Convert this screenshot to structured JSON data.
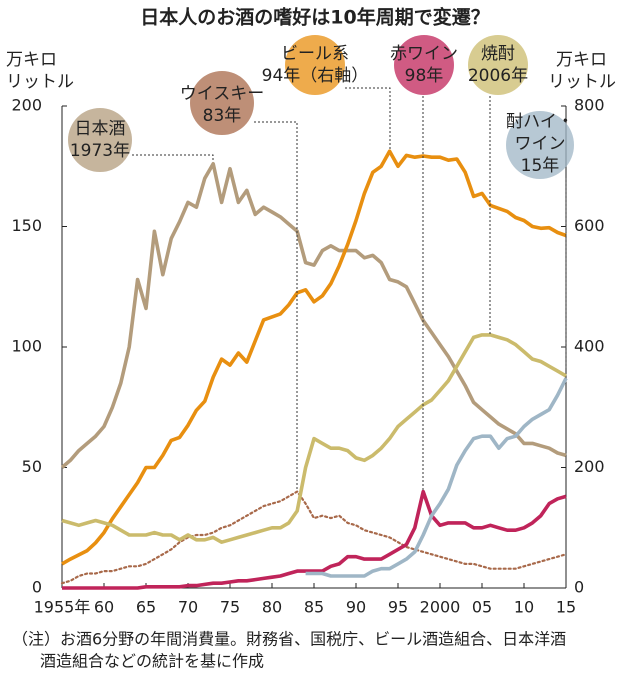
{
  "chart_data": {
    "type": "line",
    "title": "日本人のお酒の嗜好は10年周期で変遷？",
    "y_label": [
      "万キロ",
      "リットル"
    ],
    "y2_label": [
      "万キロ",
      "リットル"
    ],
    "x": [
      1955,
      1956,
      1957,
      1958,
      1959,
      1960,
      1961,
      1962,
      1963,
      1964,
      1965,
      1966,
      1967,
      1968,
      1969,
      1970,
      1971,
      1972,
      1973,
      1974,
      1975,
      1976,
      1977,
      1978,
      1979,
      1980,
      1981,
      1982,
      1983,
      1984,
      1985,
      1986,
      1987,
      1988,
      1989,
      1990,
      1991,
      1992,
      1993,
      1994,
      1995,
      1996,
      1997,
      1998,
      1999,
      2000,
      2001,
      2002,
      2003,
      2004,
      2005,
      2006,
      2007,
      2008,
      2009,
      2010,
      2011,
      2012,
      2013,
      2014,
      2015
    ],
    "xlim": [
      1955,
      2015
    ],
    "xticks": [
      {
        "value": 1955,
        "label": "1955年"
      },
      {
        "value": 1960,
        "label": "60"
      },
      {
        "value": 1965,
        "label": "65"
      },
      {
        "value": 1970,
        "label": "70"
      },
      {
        "value": 1975,
        "label": "75"
      },
      {
        "value": 1980,
        "label": "80"
      },
      {
        "value": 1985,
        "label": "85"
      },
      {
        "value": 1990,
        "label": "90"
      },
      {
        "value": 1995,
        "label": "95"
      },
      {
        "value": 2000,
        "label": "2000"
      },
      {
        "value": 2005,
        "label": "05"
      },
      {
        "value": 2010,
        "label": "10"
      },
      {
        "value": 2015,
        "label": "15"
      }
    ],
    "ylim": [
      0,
      200
    ],
    "yticks": [
      0,
      50,
      100,
      150,
      200
    ],
    "y2lim": [
      0,
      800
    ],
    "y2ticks": [
      0,
      200,
      400,
      600,
      800
    ],
    "series": [
      {
        "label": [
          "日本酒",
          "1973年"
        ],
        "color": "#b39c7c",
        "values": [
          50,
          53,
          57,
          60,
          63,
          67,
          75,
          85,
          100,
          128,
          116,
          148,
          130,
          145,
          152,
          160,
          158,
          170,
          176,
          160,
          174,
          160,
          165,
          155,
          158,
          156,
          154,
          151,
          148,
          135,
          134,
          140,
          142,
          140,
          140,
          140,
          137,
          138,
          135,
          128,
          127,
          125,
          118,
          111,
          106,
          101,
          96,
          90,
          84,
          77,
          74,
          71,
          68,
          66,
          64,
          60,
          60,
          59,
          58,
          56,
          55
        ]
      },
      {
        "label": [
          "ウイスキー",
          "83年"
        ],
        "color": "#a8694a",
        "style": "dotted",
        "values": [
          2,
          3,
          5,
          6,
          6,
          7,
          7,
          8,
          9,
          9,
          10,
          12,
          14,
          16,
          19,
          21,
          22,
          22,
          23,
          25,
          26,
          28,
          30,
          32,
          34,
          35,
          36,
          38,
          40,
          35,
          29,
          30,
          29,
          30,
          27,
          26,
          24,
          23,
          22,
          21,
          19,
          17,
          16,
          15,
          14,
          13,
          12,
          11,
          10,
          10,
          9,
          8,
          8,
          8,
          8,
          9,
          10,
          11,
          12,
          13,
          14
        ]
      },
      {
        "label": [
          "ビール系",
          "94年（右軸）"
        ],
        "color": "#e88f10",
        "axis": "y2",
        "values": [
          40,
          48,
          55,
          62,
          75,
          92,
          115,
          135,
          155,
          175,
          200,
          200,
          220,
          245,
          250,
          270,
          295,
          310,
          350,
          380,
          370,
          390,
          375,
          410,
          445,
          450,
          455,
          470,
          490,
          495,
          475,
          485,
          505,
          535,
          570,
          610,
          655,
          690,
          700,
          725,
          700,
          718,
          715,
          717,
          715,
          715,
          710,
          712,
          690,
          650,
          655,
          635,
          630,
          625,
          615,
          610,
          600,
          597,
          598,
          590,
          585
        ]
      },
      {
        "label": [
          "赤ワイン",
          "98年"
        ],
        "color": "#c0245a",
        "values": [
          0,
          0,
          0,
          0,
          0,
          0,
          0,
          0,
          0,
          0,
          0.5,
          0.5,
          0.5,
          0.5,
          0.5,
          1,
          1,
          1.5,
          2,
          2,
          2.5,
          3,
          3,
          3.5,
          4,
          4.5,
          5,
          6,
          7,
          7,
          7,
          7,
          9,
          10,
          13,
          13,
          12,
          12,
          12,
          14,
          16,
          18,
          25,
          40,
          30,
          26,
          27,
          27,
          27,
          25,
          25,
          26,
          25,
          24,
          24,
          25,
          27,
          30,
          35,
          37,
          38
        ]
      },
      {
        "label": [
          "焼酎",
          "2006年"
        ],
        "color": "#cbbb6c",
        "values": [
          28,
          27,
          26,
          27,
          28,
          27,
          26,
          24,
          22,
          22,
          22,
          23,
          22,
          22,
          20,
          22,
          20,
          20,
          21,
          19,
          20,
          21,
          22,
          23,
          24,
          25,
          25,
          27,
          32,
          50,
          62,
          60,
          58,
          58,
          57,
          54,
          53,
          55,
          58,
          62,
          67,
          70,
          73,
          76,
          78,
          82,
          86,
          92,
          98,
          104,
          105,
          105,
          104,
          103,
          101,
          98,
          95,
          94,
          92,
          90,
          88
        ]
      },
      {
        "label": [
          "酎ハイ・",
          "ワイン",
          "15年"
        ],
        "color": "#9fb6c6",
        "values": [
          null,
          null,
          null,
          null,
          null,
          null,
          null,
          null,
          null,
          null,
          null,
          null,
          null,
          null,
          null,
          null,
          null,
          null,
          null,
          null,
          null,
          null,
          null,
          null,
          null,
          null,
          null,
          null,
          null,
          6,
          6,
          6,
          5,
          5,
          5,
          5,
          5,
          7,
          8,
          8,
          10,
          12,
          15,
          22,
          30,
          35,
          41,
          51,
          57,
          62,
          63,
          63,
          58,
          62,
          63,
          67,
          70,
          72,
          74,
          80,
          87
        ]
      }
    ],
    "note": [
      "（注）お酒6分野の年間消費量。財務省、国税庁、ビール酒造組合、日本洋酒",
      "酒造組合などの統計を基に作成"
    ]
  }
}
